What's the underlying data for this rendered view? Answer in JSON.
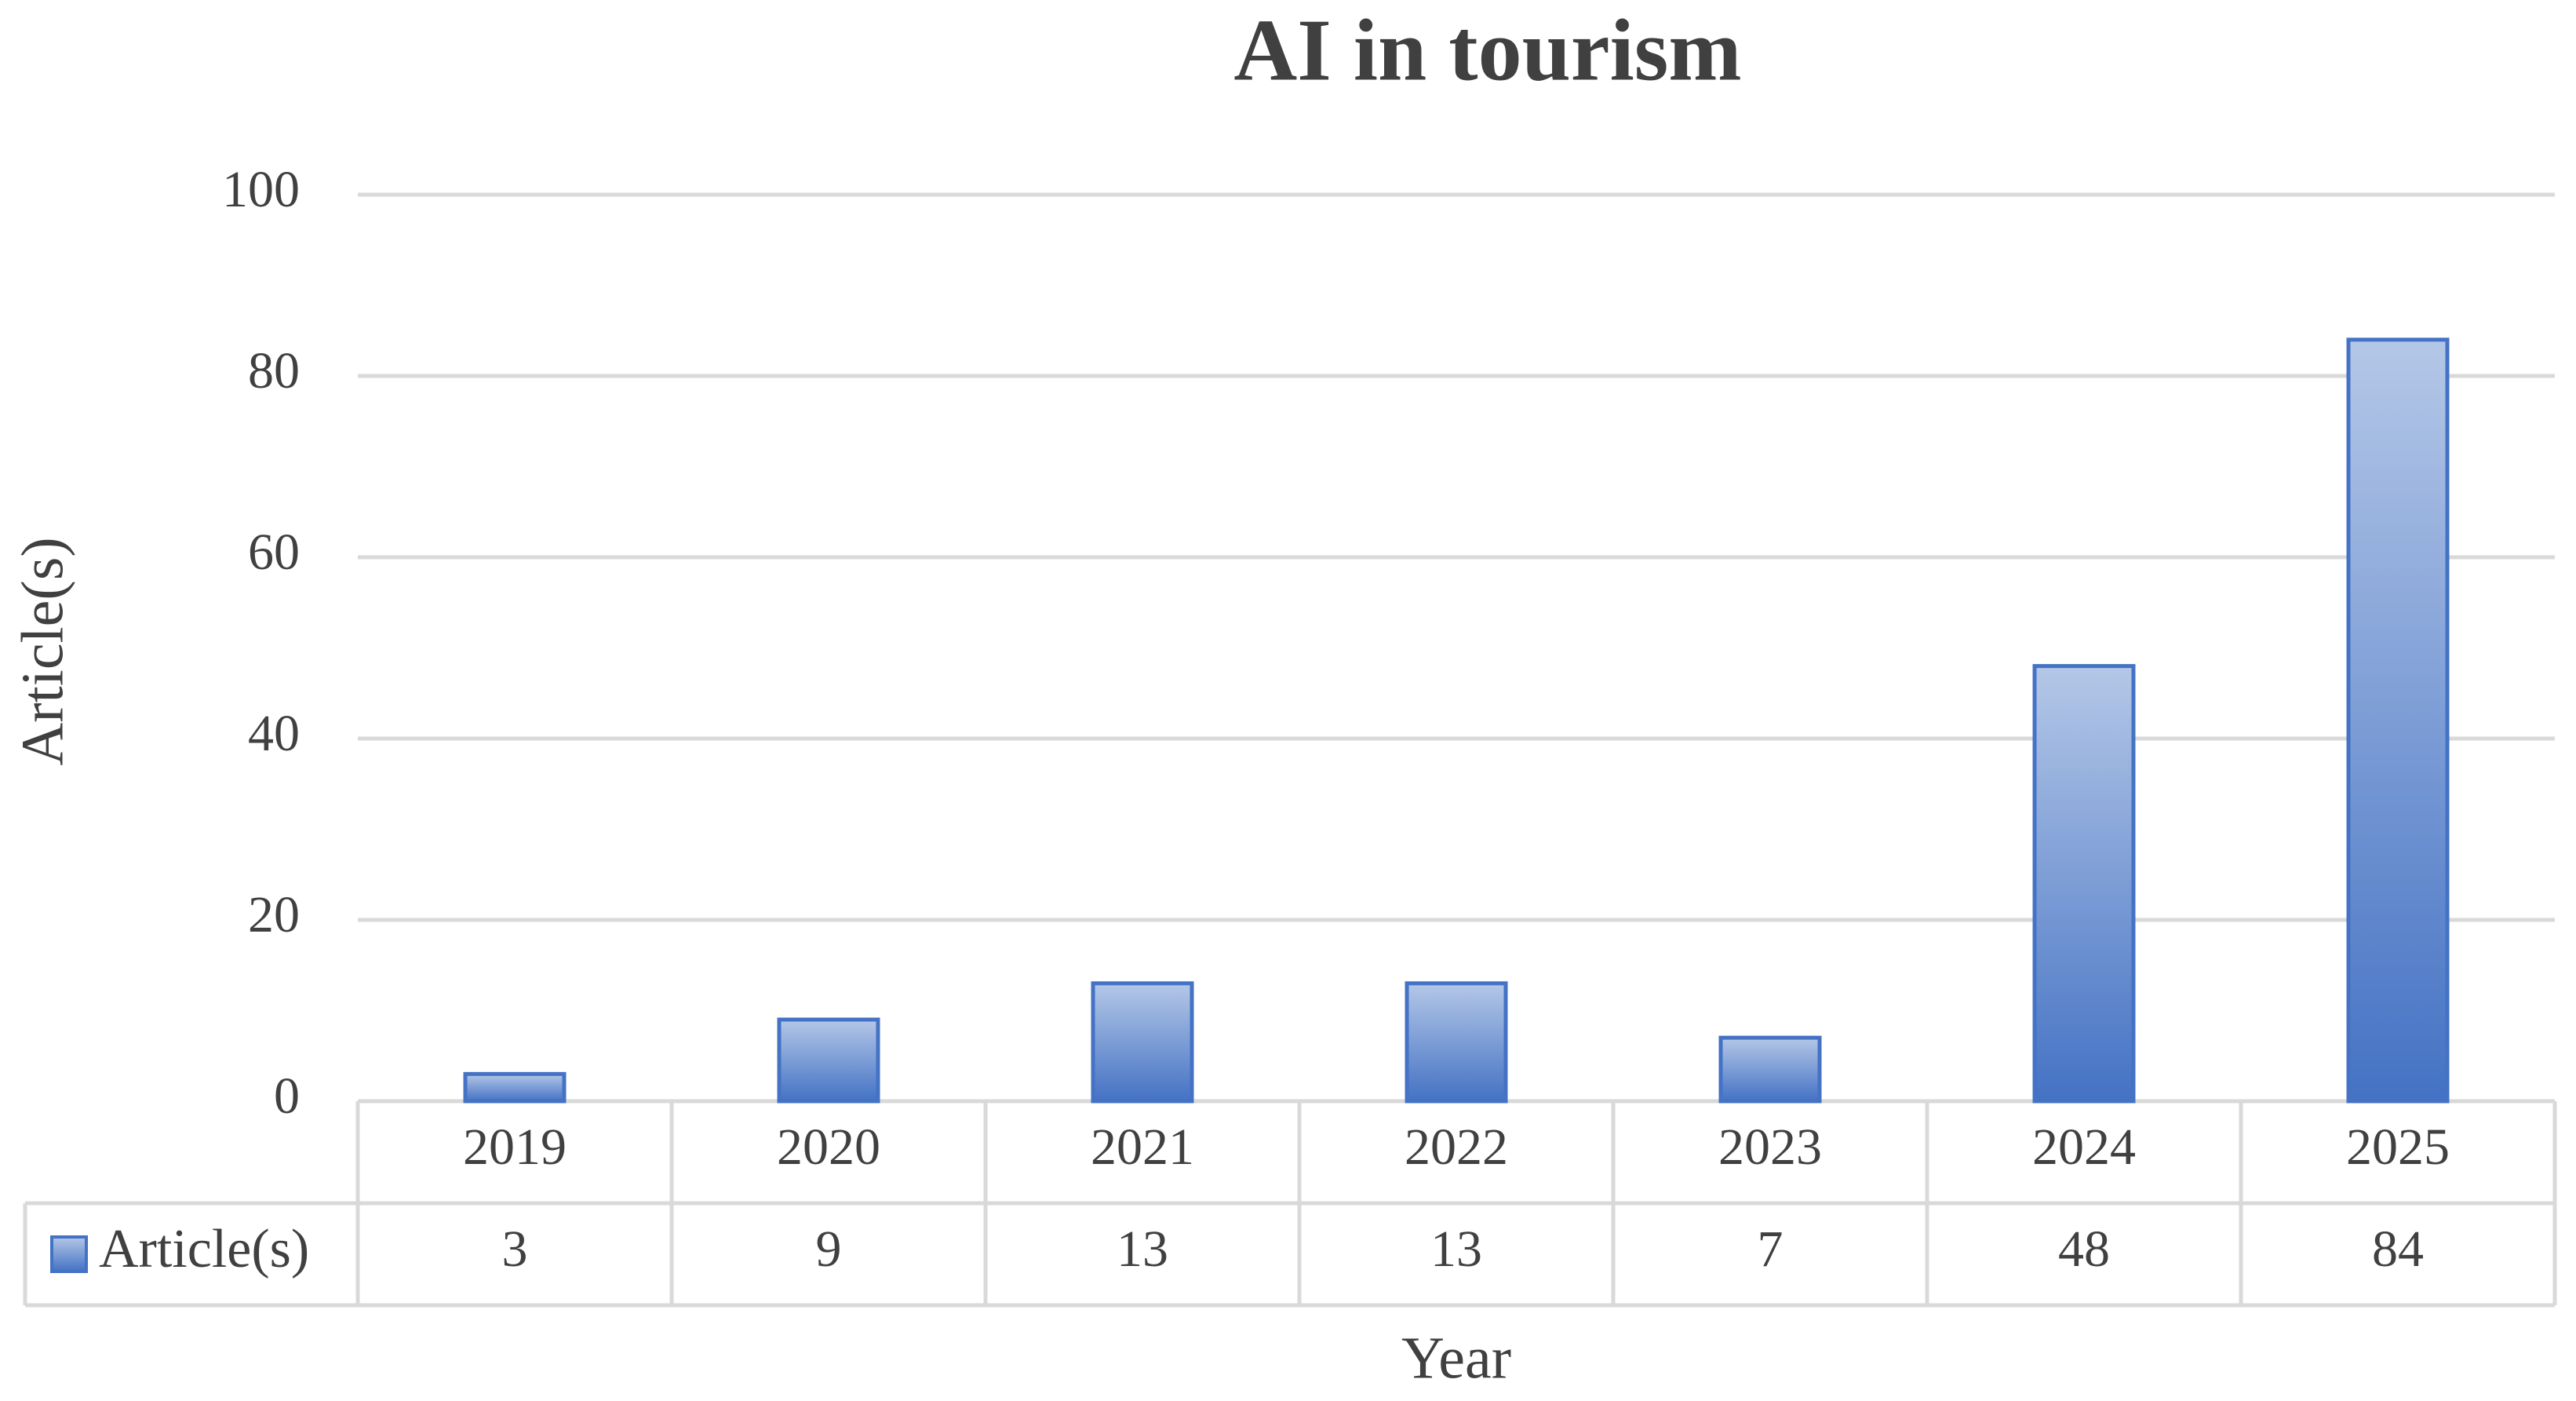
{
  "chart_data": {
    "type": "bar",
    "title": "AI in tourism",
    "x_label": "Year",
    "y_label": "Article(s)",
    "categories": [
      "2019",
      "2020",
      "2021",
      "2022",
      "2023",
      "2024",
      "2025"
    ],
    "series": [
      {
        "name": "Article(s)",
        "color": "#4472c4",
        "values": [
          3,
          9,
          13,
          13,
          7,
          48,
          84
        ]
      }
    ],
    "ylim": [
      0,
      100
    ],
    "yticks": [
      0,
      20,
      40,
      60,
      80,
      100
    ],
    "grid": true,
    "data_table": true
  }
}
